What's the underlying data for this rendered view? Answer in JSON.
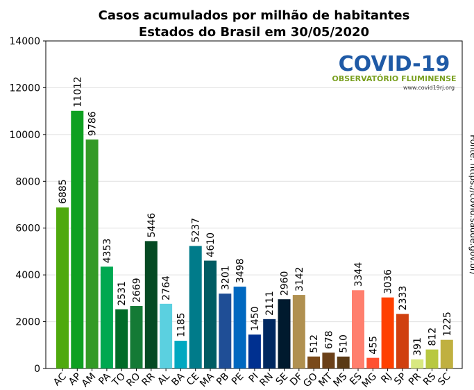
{
  "chart_data": {
    "type": "bar",
    "title": "Casos acumulados por milhão de habitantes",
    "subtitle": "Estados do Brasil em 30/05/2020",
    "source": "Fonte: https://covid.saude.gov.br/",
    "logo": {
      "title": "COVID-19",
      "subtitle": "OBSERVATÓRIO FLUMINENSE",
      "url": "www.covid19rj.org"
    },
    "categories": [
      "AC",
      "AP",
      "AM",
      "PA",
      "TO",
      "RO",
      "RR",
      "AL",
      "BA",
      "CE",
      "MA",
      "PB",
      "PE",
      "PI",
      "RN",
      "SE",
      "DF",
      "GO",
      "MT",
      "MS",
      "ES",
      "MG",
      "RJ",
      "SP",
      "PR",
      "RS",
      "SC"
    ],
    "values": [
      6885,
      11012,
      9786,
      4353,
      2531,
      2669,
      5446,
      2764,
      1185,
      5237,
      4610,
      3201,
      3498,
      1450,
      2111,
      2960,
      3142,
      512,
      678,
      510,
      3344,
      455,
      3036,
      2333,
      391,
      812,
      1225
    ],
    "colors": [
      "#4fa90e",
      "#0ea021",
      "#339a26",
      "#00a850",
      "#006b28",
      "#147a35",
      "#054a23",
      "#5bd0e0",
      "#00a8c0",
      "#007b8a",
      "#005c63",
      "#1f4e96",
      "#0068c0",
      "#003090",
      "#002860",
      "#001a2e",
      "#b09050",
      "#7a4a1a",
      "#6b4018",
      "#5a3a15",
      "#ff7f6e",
      "#ff5030",
      "#ff4000",
      "#d04010",
      "#d8e880",
      "#b8c840",
      "#c0b040"
    ],
    "ylim": [
      0,
      14000
    ],
    "yticks": [
      0,
      2000,
      4000,
      6000,
      8000,
      10000,
      12000,
      14000
    ],
    "grid": true
  }
}
